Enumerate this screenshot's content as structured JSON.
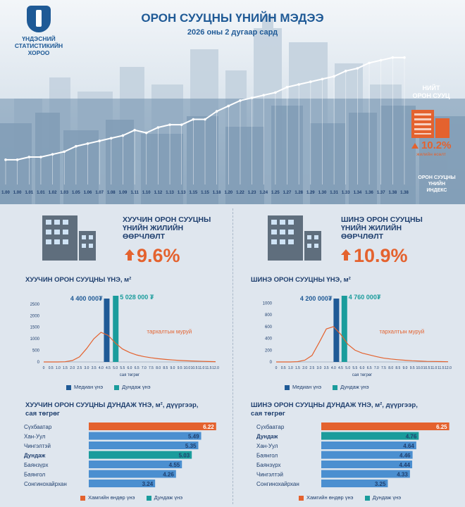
{
  "header": {
    "title": "ОРОН СУУЦНЫ ҮНИЙН МЭДЭЭ",
    "subtitle": "2026 оны 2 дугаар сард",
    "logo_text": "ҮНДЭСНИЙ\nСТАТИСТИКИЙН\nХОРОО"
  },
  "summary": {
    "total_label": "НИЙТ\nОРОН СУУЦ",
    "total_pct": "10.2%",
    "total_pct_label": "жилийн өсөлт",
    "index_label": "ОРОН СУУЦНЫ\nҮНИЙН\nИНДЕКС"
  },
  "colors": {
    "navy": "#1f5a96",
    "orange": "#e4622e",
    "teal": "#1a9c9c",
    "blue": "#4b8fd0",
    "text": "#1f3f6e"
  },
  "old": {
    "yoy_label": "ХУУЧИН ОРОН СУУЦНЫ\nҮНИЙН ЖИЛИЙН\nӨӨРЧЛӨЛТ",
    "yoy_value": "9.6%",
    "dist_title": "ХУУЧИН ОРОН СУУЦНЫ ҮНЭ, м²",
    "median_label": "4 400 000₮",
    "mean_label": "5 028 000 ₮",
    "curve_label": "тархалтын муруй",
    "xaxis_label": "сая төгрөг",
    "legend_median": "Медиан үнэ",
    "legend_mean": "Дундаж үнэ",
    "dist_title2": "ХУУЧИН ОРОН СУУЦНЫ ДУНДАЖ ҮНЭ, м², дүүргээр,\nсая төгрөг",
    "legend_max": "Хамгийн өндөр үнэ",
    "legend_avg": "Дундаж үнэ"
  },
  "new": {
    "yoy_label": "ШИНЭ ОРОН СУУЦНЫ\nҮНИЙН ЖИЛИЙН\nӨӨРЧЛӨЛТ",
    "yoy_value": "10.9%",
    "dist_title": "ШИНЭ ОРОН СУУЦНЫ ҮНЭ, м²",
    "median_label": "4 200 000₮",
    "mean_label": "4 760 000₮",
    "curve_label": "тархалтын муруй",
    "xaxis_label": "сая төгрөг",
    "legend_median": "Медиан үнэ",
    "legend_mean": "Дундаж үнэ",
    "dist_title2": "ШИНЭ ОРОН СУУЦНЫ ДУНДАЖ ҮНЭ, м², дүүргээр,\nсая төгрөг",
    "legend_max": "Хамгийн өндөр үнэ",
    "legend_avg": "Дундаж үнэ"
  },
  "chart_data": [
    {
      "id": "index",
      "type": "line",
      "title": "ОРОН СУУЦНЫ ҮНИЙН ИНДЕКС",
      "values": [
        1.0,
        1.0,
        1.01,
        1.01,
        1.02,
        1.03,
        1.05,
        1.06,
        1.07,
        1.08,
        1.09,
        1.11,
        1.1,
        1.12,
        1.13,
        1.13,
        1.15,
        1.15,
        1.18,
        1.2,
        1.22,
        1.23,
        1.24,
        1.25,
        1.27,
        1.28,
        1.29,
        1.3,
        1.31,
        1.33,
        1.34,
        1.36,
        1.37,
        1.38,
        1.38
      ],
      "value_labels": [
        "1.00",
        "1.00",
        "1.01",
        "1.01",
        "1.02",
        "1.03",
        "1.05",
        "1.06",
        "1.07",
        "1.08",
        "1.09",
        "1.11",
        "1.10",
        "1.12",
        "1.13",
        "1.13",
        "1.15",
        "1.15",
        "1.18",
        "1.20",
        "1.22",
        "1.23",
        "1.24",
        "1.25",
        "1.27",
        "1.28",
        "1.29",
        "1.30",
        "1.31",
        "1.33",
        "1.34",
        "1.36",
        "1.37",
        "1.38",
        "1.38"
      ]
    },
    {
      "id": "old_dist",
      "type": "line",
      "x": [
        0,
        0.5,
        1.0,
        1.5,
        2.0,
        2.5,
        3.0,
        3.5,
        4.0,
        4.5,
        5.0,
        5.5,
        6.0,
        6.5,
        7.0,
        7.5,
        8.0,
        8.5,
        9.0,
        9.5,
        10.0,
        10.5,
        11.0,
        11.5,
        12.0
      ],
      "xtick_labels": [
        "0",
        "0.5",
        "1.0",
        "1.5",
        "2.0",
        "2.5",
        "3.0",
        "3.5",
        "4.0",
        "4.5",
        "5.0",
        "5.5",
        "6.0",
        "6.5",
        "7.0",
        "7.5",
        "8.0",
        "8.5",
        "9.0",
        "9.5",
        "10.0",
        "10.5",
        "11.0",
        "11.5",
        "12.0"
      ],
      "y": [
        0,
        0,
        0,
        10,
        60,
        220,
        580,
        1000,
        1280,
        1150,
        820,
        560,
        410,
        300,
        230,
        180,
        140,
        110,
        85,
        65,
        50,
        38,
        28,
        20,
        12
      ],
      "yticks": [
        0,
        500,
        1000,
        1500,
        2000,
        2500
      ],
      "ylim": [
        0,
        2800
      ],
      "median": 4.4,
      "mean": 5.028
    },
    {
      "id": "new_dist",
      "type": "line",
      "x": [
        0,
        0.5,
        1.0,
        1.5,
        2.0,
        2.5,
        3.0,
        3.5,
        4.0,
        4.5,
        5.0,
        5.5,
        6.0,
        6.5,
        7.0,
        7.5,
        8.0,
        8.5,
        9.0,
        9.5,
        10.0,
        10.5,
        11.0,
        11.5,
        12.0
      ],
      "xtick_labels": [
        "0",
        "0.5",
        "1.0",
        "1.5",
        "2.0",
        "2.5",
        "3.0",
        "3.5",
        "4.0",
        "4.5",
        "5.0",
        "5.5",
        "6.0",
        "6.5",
        "7.0",
        "7.5",
        "8.0",
        "8.5",
        "9.0",
        "9.5",
        "10.0",
        "10.5",
        "11.0",
        "11.5",
        "12.0"
      ],
      "y": [
        0,
        0,
        0,
        5,
        30,
        110,
        330,
        560,
        600,
        470,
        300,
        200,
        150,
        120,
        90,
        65,
        50,
        38,
        28,
        20,
        15,
        10,
        8,
        6,
        4
      ],
      "yticks": [
        0,
        200,
        400,
        600,
        800,
        1000
      ],
      "ylim": [
        0,
        1100
      ],
      "median": 4.2,
      "mean": 4.76
    },
    {
      "id": "old_districts",
      "type": "bar",
      "categories": [
        "Сүхбаатар",
        "Хан-Уул",
        "Чингэлтэй",
        "Дундаж",
        "Баянзүрх",
        "Баянгол",
        "Сонгинохайрхан"
      ],
      "values": [
        6.22,
        5.49,
        5.35,
        5.03,
        4.55,
        4.26,
        3.24
      ],
      "value_labels": [
        "6.22",
        "5.49",
        "5.35",
        "5.03",
        "4.55",
        "4.26",
        "3.24"
      ],
      "kinds": [
        "max",
        "normal",
        "normal",
        "avg",
        "normal",
        "normal",
        "normal"
      ],
      "xlim": [
        0,
        6.4
      ]
    },
    {
      "id": "new_districts",
      "type": "bar",
      "categories": [
        "Сүхбаатар",
        "Дундаж",
        "Хан-Уул",
        "Баянгол",
        "Баянзүрх",
        "Чингэлтэй",
        "Сонгинохайрхан"
      ],
      "values": [
        6.25,
        4.76,
        4.64,
        4.46,
        4.44,
        4.33,
        3.25
      ],
      "value_labels": [
        "6.25",
        "4.76",
        "4.64",
        "4.46",
        "4.44",
        "4.33",
        "3.25"
      ],
      "kinds": [
        "max",
        "avg",
        "normal",
        "normal",
        "normal",
        "normal",
        "normal"
      ],
      "xlim": [
        0,
        6.4
      ]
    }
  ]
}
